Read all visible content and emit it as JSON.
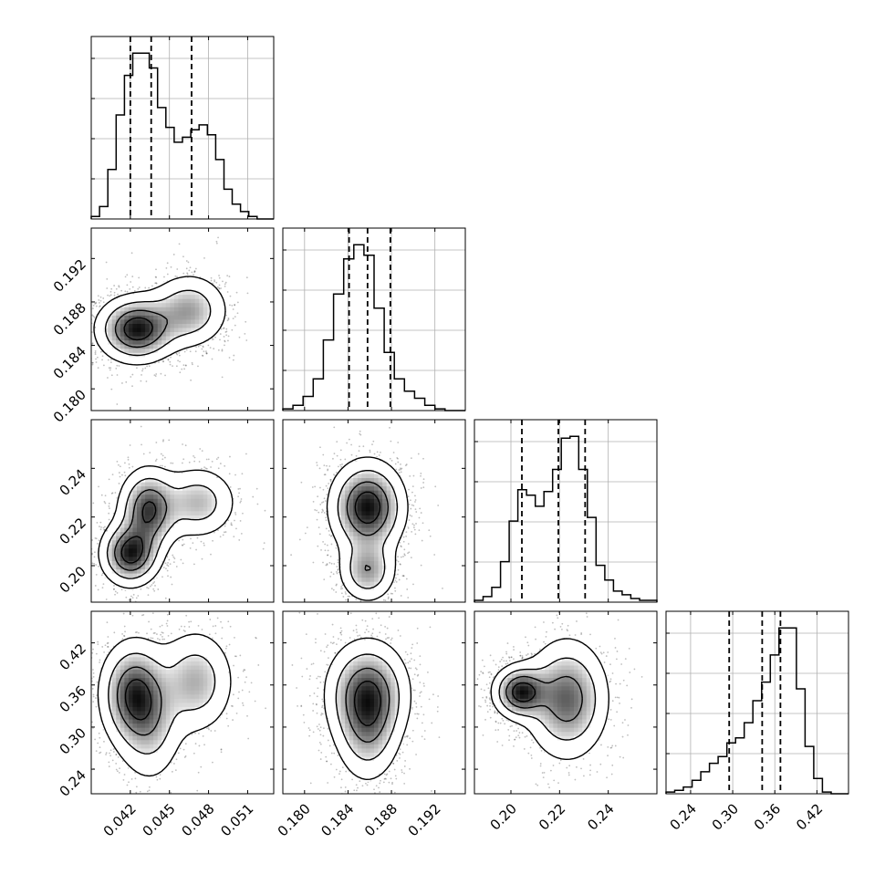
{
  "chart_data": {
    "type": "corner",
    "parameters": [
      {
        "index": 0,
        "range": [
          0.039,
          0.053
        ],
        "ticks": [
          0.042,
          0.045,
          0.048,
          0.051
        ],
        "tick_labels": [
          "0.042",
          "0.045",
          "0.048",
          "0.051"
        ],
        "quantiles": [
          0.042,
          0.0436,
          0.0467
        ]
      },
      {
        "index": 1,
        "range": [
          0.178,
          0.1948
        ],
        "ticks": [
          0.18,
          0.184,
          0.188,
          0.192
        ],
        "tick_labels": [
          "0.180",
          "0.184",
          "0.188",
          "0.192"
        ],
        "quantiles": [
          0.1841,
          0.1858,
          0.1879
        ]
      },
      {
        "index": 2,
        "range": [
          0.185,
          0.26
        ],
        "ticks": [
          0.2,
          0.22,
          0.24
        ],
        "tick_labels": [
          "0.20",
          "0.22",
          "0.24"
        ],
        "quantiles": [
          0.2045,
          0.2195,
          0.2305
        ]
      },
      {
        "index": 3,
        "range": [
          0.205,
          0.465
        ],
        "ticks": [
          0.24,
          0.3,
          0.36,
          0.42
        ],
        "tick_labels": [
          "0.24",
          "0.30",
          "0.36",
          "0.42"
        ],
        "quantiles": [
          0.295,
          0.342,
          0.368
        ]
      }
    ],
    "histograms": [
      [
        1,
        5,
        20,
        42,
        58,
        67,
        67,
        61,
        45,
        37,
        31,
        33,
        36,
        38,
        34,
        24,
        12,
        6,
        3,
        1,
        0,
        0
      ],
      [
        1,
        3,
        8,
        18,
        40,
        66,
        86,
        94,
        88,
        58,
        33,
        18,
        11,
        7,
        3,
        1,
        0,
        0
      ],
      [
        1,
        3,
        8,
        22,
        44,
        61,
        58,
        52,
        60,
        72,
        89,
        90,
        72,
        46,
        20,
        12,
        6,
        4,
        2,
        1,
        1
      ],
      [
        1,
        2,
        4,
        8,
        13,
        18,
        22,
        30,
        33,
        42,
        55,
        66,
        82,
        98,
        98,
        62,
        28,
        9,
        1,
        0,
        0
      ]
    ],
    "density_modes": [
      [
        [
          0.0425,
          0.1855,
          1.0,
          0.0016,
          0.0016
        ],
        [
          0.0465,
          0.1872,
          0.55,
          0.0016,
          0.0018
        ]
      ],
      [
        [
          0.042,
          0.205,
          1.0,
          0.0012,
          0.007
        ],
        [
          0.0434,
          0.223,
          0.9,
          0.0012,
          0.009
        ],
        [
          0.0472,
          0.226,
          0.5,
          0.0016,
          0.008
        ]
      ],
      [
        [
          0.1858,
          0.224,
          1.0,
          0.0018,
          0.01
        ],
        [
          0.1858,
          0.198,
          0.55,
          0.0014,
          0.007
        ]
      ],
      [
        [
          0.0423,
          0.348,
          1.0,
          0.0014,
          0.04
        ],
        [
          0.0435,
          0.3,
          0.45,
          0.0014,
          0.045
        ],
        [
          0.047,
          0.365,
          0.6,
          0.0016,
          0.04
        ]
      ],
      [
        [
          0.1858,
          0.348,
          1.0,
          0.002,
          0.04
        ],
        [
          0.1858,
          0.29,
          0.5,
          0.0016,
          0.04
        ]
      ],
      [
        [
          0.204,
          0.35,
          1.0,
          0.006,
          0.02
        ],
        [
          0.223,
          0.34,
          0.8,
          0.009,
          0.045
        ]
      ]
    ]
  }
}
